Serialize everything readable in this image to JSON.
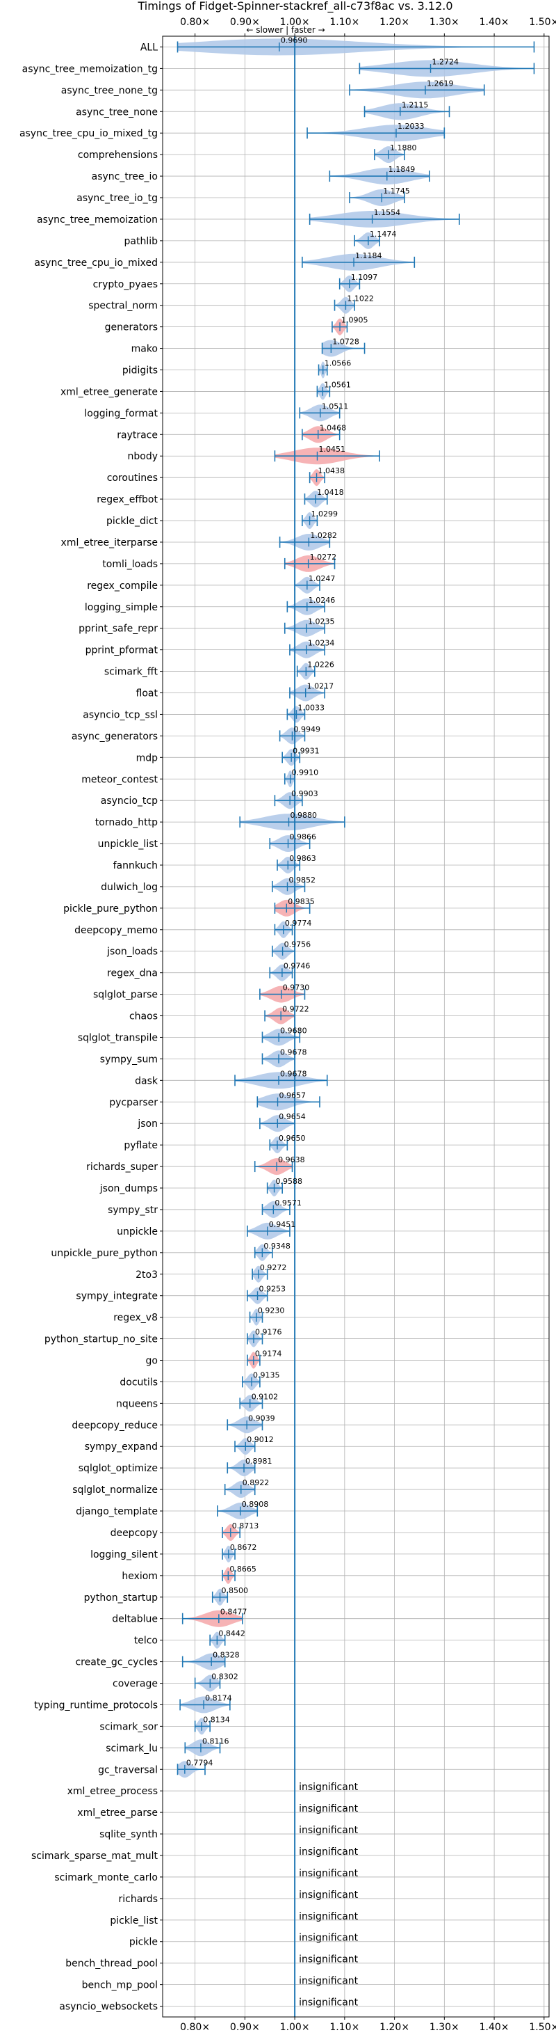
{
  "chart_data": {
    "type": "violin",
    "title": "Timings of Fidget-Spinner-stackref_all-c73f8ac vs. 3.12.0",
    "direction_label": "← slower | faster →",
    "xlim": [
      0.735,
      1.51
    ],
    "x_ticks": [
      0.8,
      0.9,
      1.0,
      1.1,
      1.2,
      1.3,
      1.4,
      1.5
    ],
    "x_tick_labels": [
      "0.80×",
      "0.90×",
      "1.00×",
      "1.10×",
      "1.20×",
      "1.30×",
      "1.40×",
      "1.50×"
    ],
    "reference_line": 1.0,
    "grid": true,
    "colors": {
      "blue": "#1f77b4",
      "violin_blue": "#aec7e8",
      "violin_red": "#f4a6a8",
      "grid": "#b0b0b0"
    },
    "insignificant_label": "insignificant",
    "benchmarks": [
      {
        "name": "ALL",
        "median": 0.969,
        "label": "0.9690",
        "min": 0.765,
        "max": 1.48,
        "color": "blue"
      },
      {
        "name": "async_tree_memoization_tg",
        "median": 1.2724,
        "label": "1.2724",
        "min": 1.13,
        "max": 1.48,
        "color": "blue"
      },
      {
        "name": "async_tree_none_tg",
        "median": 1.2619,
        "label": "1.2619",
        "min": 1.11,
        "max": 1.38,
        "color": "blue"
      },
      {
        "name": "async_tree_none",
        "median": 1.2115,
        "label": "1.2115",
        "min": 1.14,
        "max": 1.31,
        "color": "blue"
      },
      {
        "name": "async_tree_cpu_io_mixed_tg",
        "median": 1.2033,
        "label": "1.2033",
        "min": 1.025,
        "max": 1.3,
        "color": "blue"
      },
      {
        "name": "comprehensions",
        "median": 1.188,
        "label": "1.1880",
        "min": 1.16,
        "max": 1.22,
        "color": "blue"
      },
      {
        "name": "async_tree_io",
        "median": 1.1849,
        "label": "1.1849",
        "min": 1.07,
        "max": 1.27,
        "color": "blue"
      },
      {
        "name": "async_tree_io_tg",
        "median": 1.1745,
        "label": "1.1745",
        "min": 1.11,
        "max": 1.22,
        "color": "blue"
      },
      {
        "name": "async_tree_memoization",
        "median": 1.1554,
        "label": "1.1554",
        "min": 1.03,
        "max": 1.33,
        "color": "blue"
      },
      {
        "name": "pathlib",
        "median": 1.1474,
        "label": "1.1474",
        "min": 1.12,
        "max": 1.17,
        "color": "blue"
      },
      {
        "name": "async_tree_cpu_io_mixed",
        "median": 1.1184,
        "label": "1.1184",
        "min": 1.015,
        "max": 1.24,
        "color": "blue"
      },
      {
        "name": "crypto_pyaes",
        "median": 1.1097,
        "label": "1.1097",
        "min": 1.09,
        "max": 1.13,
        "color": "blue"
      },
      {
        "name": "spectral_norm",
        "median": 1.1022,
        "label": "1.1022",
        "min": 1.08,
        "max": 1.12,
        "color": "blue"
      },
      {
        "name": "generators",
        "median": 1.0905,
        "label": "1.0905",
        "min": 1.075,
        "max": 1.105,
        "color": "red"
      },
      {
        "name": "mako",
        "median": 1.0728,
        "label": "1.0728",
        "min": 1.055,
        "max": 1.14,
        "color": "blue"
      },
      {
        "name": "pidigits",
        "median": 1.0566,
        "label": "1.0566",
        "min": 1.048,
        "max": 1.065,
        "color": "blue"
      },
      {
        "name": "xml_etree_generate",
        "median": 1.0561,
        "label": "1.0561",
        "min": 1.045,
        "max": 1.07,
        "color": "blue"
      },
      {
        "name": "logging_format",
        "median": 1.0511,
        "label": "1.0511",
        "min": 1.01,
        "max": 1.09,
        "color": "blue"
      },
      {
        "name": "raytrace",
        "median": 1.0468,
        "label": "1.0468",
        "min": 1.015,
        "max": 1.09,
        "color": "red"
      },
      {
        "name": "nbody",
        "median": 1.0451,
        "label": "1.0451",
        "min": 0.96,
        "max": 1.17,
        "color": "red"
      },
      {
        "name": "coroutines",
        "median": 1.0438,
        "label": "1.0438",
        "min": 1.03,
        "max": 1.06,
        "color": "red"
      },
      {
        "name": "regex_effbot",
        "median": 1.0418,
        "label": "1.0418",
        "min": 1.02,
        "max": 1.065,
        "color": "blue"
      },
      {
        "name": "pickle_dict",
        "median": 1.0299,
        "label": "1.0299",
        "min": 1.015,
        "max": 1.045,
        "color": "blue"
      },
      {
        "name": "xml_etree_iterparse",
        "median": 1.0282,
        "label": "1.0282",
        "min": 0.97,
        "max": 1.07,
        "color": "blue"
      },
      {
        "name": "tomli_loads",
        "median": 1.0272,
        "label": "1.0272",
        "min": 0.98,
        "max": 1.08,
        "color": "red"
      },
      {
        "name": "regex_compile",
        "median": 1.0247,
        "label": "1.0247",
        "min": 1.0,
        "max": 1.05,
        "color": "blue"
      },
      {
        "name": "logging_simple",
        "median": 1.0246,
        "label": "1.0246",
        "min": 0.985,
        "max": 1.06,
        "color": "blue"
      },
      {
        "name": "pprint_safe_repr",
        "median": 1.0235,
        "label": "1.0235",
        "min": 0.98,
        "max": 1.06,
        "color": "blue"
      },
      {
        "name": "pprint_pformat",
        "median": 1.0234,
        "label": "1.0234",
        "min": 0.99,
        "max": 1.06,
        "color": "blue"
      },
      {
        "name": "scimark_fft",
        "median": 1.0226,
        "label": "1.0226",
        "min": 1.005,
        "max": 1.04,
        "color": "blue"
      },
      {
        "name": "float",
        "median": 1.0217,
        "label": "1.0217",
        "min": 0.99,
        "max": 1.06,
        "color": "blue"
      },
      {
        "name": "asyncio_tcp_ssl",
        "median": 1.0033,
        "label": "1.0033",
        "min": 0.985,
        "max": 1.02,
        "color": "blue"
      },
      {
        "name": "async_generators",
        "median": 0.9949,
        "label": "0.9949",
        "min": 0.97,
        "max": 1.02,
        "color": "blue"
      },
      {
        "name": "mdp",
        "median": 0.9931,
        "label": "0.9931",
        "min": 0.975,
        "max": 1.01,
        "color": "blue"
      },
      {
        "name": "meteor_contest",
        "median": 0.991,
        "label": "0.9910",
        "min": 0.98,
        "max": 1.0,
        "color": "blue"
      },
      {
        "name": "asyncio_tcp",
        "median": 0.9903,
        "label": "0.9903",
        "min": 0.96,
        "max": 1.015,
        "color": "blue"
      },
      {
        "name": "tornado_http",
        "median": 0.988,
        "label": "0.9880",
        "min": 0.89,
        "max": 1.1,
        "color": "blue"
      },
      {
        "name": "unpickle_list",
        "median": 0.9866,
        "label": "0.9866",
        "min": 0.95,
        "max": 1.03,
        "color": "blue"
      },
      {
        "name": "fannkuch",
        "median": 0.9863,
        "label": "0.9863",
        "min": 0.965,
        "max": 1.01,
        "color": "blue"
      },
      {
        "name": "dulwich_log",
        "median": 0.9852,
        "label": "0.9852",
        "min": 0.955,
        "max": 1.02,
        "color": "blue"
      },
      {
        "name": "pickle_pure_python",
        "median": 0.9835,
        "label": "0.9835",
        "min": 0.96,
        "max": 1.03,
        "color": "red"
      },
      {
        "name": "deepcopy_memo",
        "median": 0.9774,
        "label": "0.9774",
        "min": 0.96,
        "max": 0.995,
        "color": "blue"
      },
      {
        "name": "json_loads",
        "median": 0.9756,
        "label": "0.9756",
        "min": 0.955,
        "max": 1.0,
        "color": "blue"
      },
      {
        "name": "regex_dna",
        "median": 0.9746,
        "label": "0.9746",
        "min": 0.95,
        "max": 0.995,
        "color": "blue"
      },
      {
        "name": "sqlglot_parse",
        "median": 0.973,
        "label": "0.9730",
        "min": 0.93,
        "max": 1.02,
        "color": "red"
      },
      {
        "name": "chaos",
        "median": 0.9722,
        "label": "0.9722",
        "min": 0.94,
        "max": 1.0,
        "color": "red"
      },
      {
        "name": "sqlglot_transpile",
        "median": 0.968,
        "label": "0.9680",
        "min": 0.935,
        "max": 1.01,
        "color": "blue"
      },
      {
        "name": "sympy_sum",
        "median": 0.9678,
        "label": "0.9678",
        "min": 0.935,
        "max": 1.0,
        "color": "blue"
      },
      {
        "name": "dask",
        "median": 0.9678,
        "label": "0.9678",
        "min": 0.88,
        "max": 1.065,
        "color": "blue"
      },
      {
        "name": "pycparser",
        "median": 0.9657,
        "label": "0.9657",
        "min": 0.925,
        "max": 1.05,
        "color": "blue"
      },
      {
        "name": "json",
        "median": 0.9654,
        "label": "0.9654",
        "min": 0.93,
        "max": 1.0,
        "color": "blue"
      },
      {
        "name": "pyflate",
        "median": 0.965,
        "label": "0.9650",
        "min": 0.95,
        "max": 0.985,
        "color": "blue"
      },
      {
        "name": "richards_super",
        "median": 0.9638,
        "label": "0.9638",
        "min": 0.92,
        "max": 0.995,
        "color": "red"
      },
      {
        "name": "json_dumps",
        "median": 0.9588,
        "label": "0.9588",
        "min": 0.945,
        "max": 0.975,
        "color": "blue"
      },
      {
        "name": "sympy_str",
        "median": 0.9571,
        "label": "0.9571",
        "min": 0.935,
        "max": 0.99,
        "color": "blue"
      },
      {
        "name": "unpickle",
        "median": 0.9451,
        "label": "0.9451",
        "min": 0.905,
        "max": 0.99,
        "color": "blue"
      },
      {
        "name": "unpickle_pure_python",
        "median": 0.9348,
        "label": "0.9348",
        "min": 0.92,
        "max": 0.955,
        "color": "blue"
      },
      {
        "name": "2to3",
        "median": 0.9272,
        "label": "0.9272",
        "min": 0.915,
        "max": 0.945,
        "color": "blue"
      },
      {
        "name": "sympy_integrate",
        "median": 0.9253,
        "label": "0.9253",
        "min": 0.905,
        "max": 0.945,
        "color": "blue"
      },
      {
        "name": "regex_v8",
        "median": 0.923,
        "label": "0.9230",
        "min": 0.91,
        "max": 0.935,
        "color": "blue"
      },
      {
        "name": "python_startup_no_site",
        "median": 0.9176,
        "label": "0.9176",
        "min": 0.905,
        "max": 0.935,
        "color": "blue"
      },
      {
        "name": "go",
        "median": 0.9174,
        "label": "0.9174",
        "min": 0.905,
        "max": 0.93,
        "color": "red"
      },
      {
        "name": "docutils",
        "median": 0.9135,
        "label": "0.9135",
        "min": 0.895,
        "max": 0.93,
        "color": "blue"
      },
      {
        "name": "nqueens",
        "median": 0.9102,
        "label": "0.9102",
        "min": 0.89,
        "max": 0.935,
        "color": "blue"
      },
      {
        "name": "deepcopy_reduce",
        "median": 0.9039,
        "label": "0.9039",
        "min": 0.865,
        "max": 0.935,
        "color": "blue"
      },
      {
        "name": "sympy_expand",
        "median": 0.9012,
        "label": "0.9012",
        "min": 0.88,
        "max": 0.92,
        "color": "blue"
      },
      {
        "name": "sqlglot_optimize",
        "median": 0.8981,
        "label": "0.8981",
        "min": 0.865,
        "max": 0.92,
        "color": "blue"
      },
      {
        "name": "sqlglot_normalize",
        "median": 0.8922,
        "label": "0.8922",
        "min": 0.86,
        "max": 0.92,
        "color": "blue"
      },
      {
        "name": "django_template",
        "median": 0.8908,
        "label": "0.8908",
        "min": 0.845,
        "max": 0.925,
        "color": "blue"
      },
      {
        "name": "deepcopy",
        "median": 0.8713,
        "label": "0.8713",
        "min": 0.855,
        "max": 0.89,
        "color": "red"
      },
      {
        "name": "logging_silent",
        "median": 0.8672,
        "label": "0.8672",
        "min": 0.855,
        "max": 0.88,
        "color": "blue"
      },
      {
        "name": "hexiom",
        "median": 0.8665,
        "label": "0.8665",
        "min": 0.855,
        "max": 0.88,
        "color": "red"
      },
      {
        "name": "python_startup",
        "median": 0.85,
        "label": "0.8500",
        "min": 0.835,
        "max": 0.865,
        "color": "blue"
      },
      {
        "name": "deltablue",
        "median": 0.8477,
        "label": "0.8477",
        "min": 0.775,
        "max": 0.895,
        "color": "red"
      },
      {
        "name": "telco",
        "median": 0.8442,
        "label": "0.8442",
        "min": 0.83,
        "max": 0.86,
        "color": "blue"
      },
      {
        "name": "create_gc_cycles",
        "median": 0.8328,
        "label": "0.8328",
        "min": 0.775,
        "max": 0.86,
        "color": "blue"
      },
      {
        "name": "coverage",
        "median": 0.8302,
        "label": "0.8302",
        "min": 0.8,
        "max": 0.85,
        "color": "blue"
      },
      {
        "name": "typing_runtime_protocols",
        "median": 0.8174,
        "label": "0.8174",
        "min": 0.77,
        "max": 0.87,
        "color": "blue"
      },
      {
        "name": "scimark_sor",
        "median": 0.8134,
        "label": "0.8134",
        "min": 0.8,
        "max": 0.83,
        "color": "blue"
      },
      {
        "name": "scimark_lu",
        "median": 0.8116,
        "label": "0.8116",
        "min": 0.78,
        "max": 0.85,
        "color": "blue"
      },
      {
        "name": "gc_traversal",
        "median": 0.7794,
        "label": "0.7794",
        "min": 0.765,
        "max": 0.82,
        "color": "blue"
      },
      {
        "name": "xml_etree_process",
        "insignificant": true
      },
      {
        "name": "xml_etree_parse",
        "insignificant": true
      },
      {
        "name": "sqlite_synth",
        "insignificant": true
      },
      {
        "name": "scimark_sparse_mat_mult",
        "insignificant": true
      },
      {
        "name": "scimark_monte_carlo",
        "insignificant": true
      },
      {
        "name": "richards",
        "insignificant": true
      },
      {
        "name": "pickle_list",
        "insignificant": true
      },
      {
        "name": "pickle",
        "insignificant": true
      },
      {
        "name": "bench_thread_pool",
        "insignificant": true
      },
      {
        "name": "bench_mp_pool",
        "insignificant": true
      },
      {
        "name": "asyncio_websockets",
        "insignificant": true
      }
    ]
  }
}
